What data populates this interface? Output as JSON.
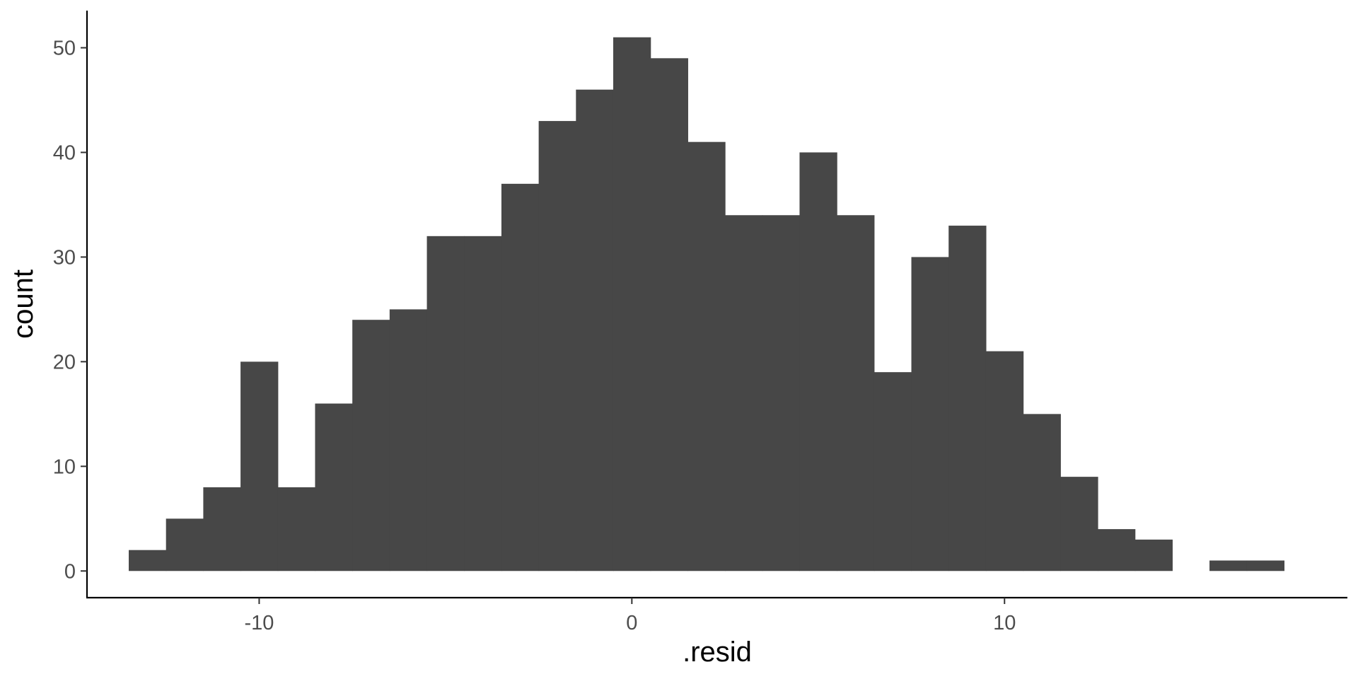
{
  "chart_data": {
    "type": "bar",
    "subtype": "histogram",
    "title": "",
    "xlabel": ".resid",
    "ylabel": "count",
    "xlim": [
      -14.62,
      19.2
    ],
    "ylim": [
      -2.55,
      53.55
    ],
    "x_ticks": [
      -10,
      0,
      10
    ],
    "x_tick_labels": [
      "-10",
      "0",
      "10"
    ],
    "y_ticks": [
      0,
      10,
      20,
      30,
      40,
      50
    ],
    "y_tick_labels": [
      "0",
      "10",
      "20",
      "30",
      "40",
      "50"
    ],
    "bin_width": 1,
    "bin_starts": [
      -13.5,
      -12.5,
      -11.5,
      -10.5,
      -9.5,
      -8.5,
      -7.5,
      -6.5,
      -5.5,
      -4.5,
      -3.5,
      -2.5,
      -1.5,
      -0.5,
      0.5,
      1.5,
      2.5,
      3.5,
      4.5,
      5.5,
      6.5,
      7.5,
      8.5,
      9.5,
      10.5,
      11.5,
      12.5,
      13.5,
      14.5,
      15.5,
      16.5
    ],
    "counts": [
      2,
      5,
      8,
      20,
      8,
      16,
      24,
      25,
      32,
      32,
      37,
      43,
      46,
      51,
      49,
      41,
      34,
      34,
      40,
      34,
      19,
      30,
      33,
      21,
      15,
      9,
      4,
      3,
      0,
      1,
      1
    ],
    "fill_color": "#474747",
    "grid": false,
    "legend": "none"
  }
}
